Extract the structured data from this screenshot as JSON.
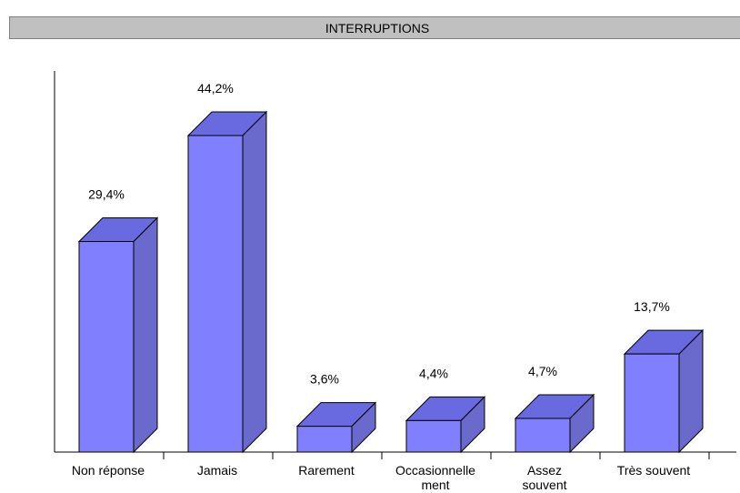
{
  "title": "INTERRUPTIONS",
  "chart_data": {
    "type": "bar",
    "title": "INTERRUPTIONS",
    "categories": [
      "Non réponse",
      "Jamais",
      "Rarement",
      "Occasionnelle ment",
      "Assez souvent",
      "Très souvent"
    ],
    "category_lines": [
      [
        "Non réponse"
      ],
      [
        "Jamais"
      ],
      [
        "Rarement"
      ],
      [
        "Occasionnelle",
        "ment"
      ],
      [
        "Assez",
        "souvent"
      ],
      [
        "Très souvent"
      ]
    ],
    "values": [
      29.4,
      44.2,
      3.6,
      4.4,
      4.7,
      13.7
    ],
    "value_labels": [
      "29,4%",
      "44,2%",
      "3,6%",
      "4,4%",
      "4,7%",
      "13,7%"
    ],
    "ylim": [
      0,
      50
    ],
    "xlabel": "",
    "ylabel": "",
    "grid": false,
    "bar_3d": true,
    "colors": {
      "front": "#8080ff",
      "top": "#6a6ae0",
      "side": "#6a6acc",
      "edge": "#000000",
      "title_bar": "#c0c0c0"
    }
  }
}
